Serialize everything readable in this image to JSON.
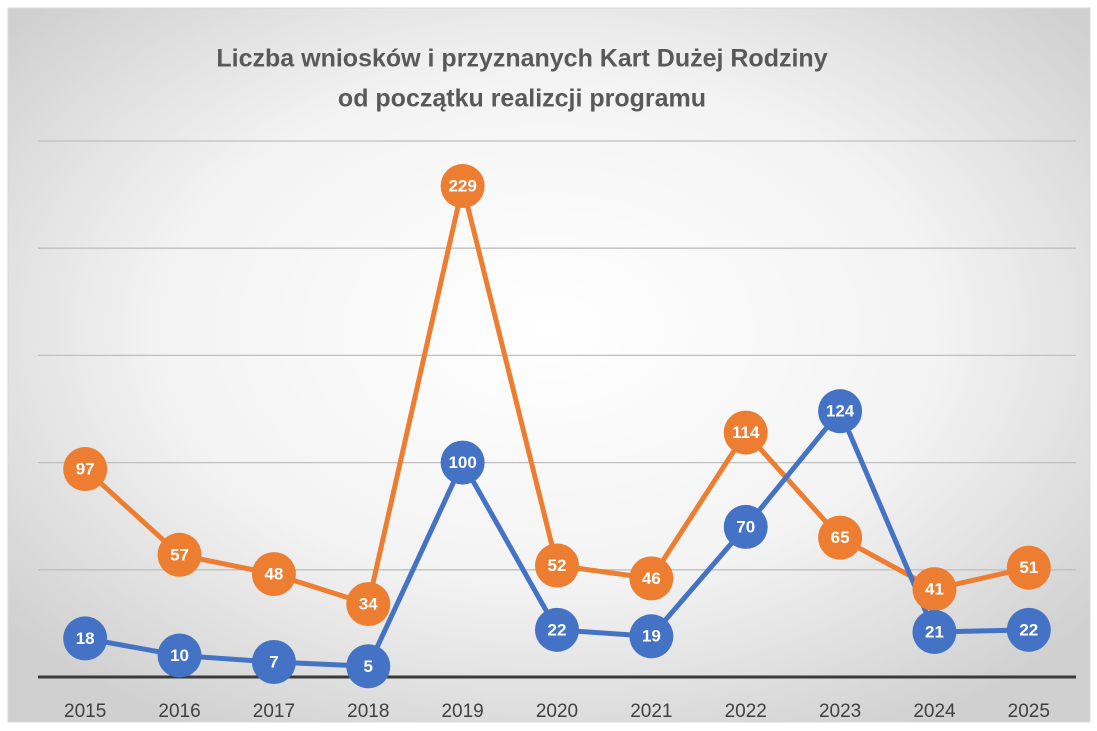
{
  "chart_data": {
    "type": "line",
    "title": [
      "Liczba wniosków i przyznanych Kart Dużej Rodziny",
      "od początku realizcji programu"
    ],
    "categories": [
      "2015",
      "2016",
      "2017",
      "2018",
      "2019",
      "2020",
      "2021",
      "2022",
      "2023",
      "2024",
      "2025"
    ],
    "series": [
      {
        "color": "#ED7D31",
        "values": [
          97,
          57,
          48,
          34,
          229,
          52,
          46,
          114,
          65,
          41,
          51
        ]
      },
      {
        "color": "#4472C4",
        "values": [
          18,
          10,
          7,
          5,
          100,
          22,
          19,
          70,
          124,
          21,
          22
        ]
      }
    ],
    "ylim": [
      0,
      250
    ],
    "yticks": [
      0,
      50,
      100,
      150,
      200,
      250
    ],
    "grid": true
  }
}
